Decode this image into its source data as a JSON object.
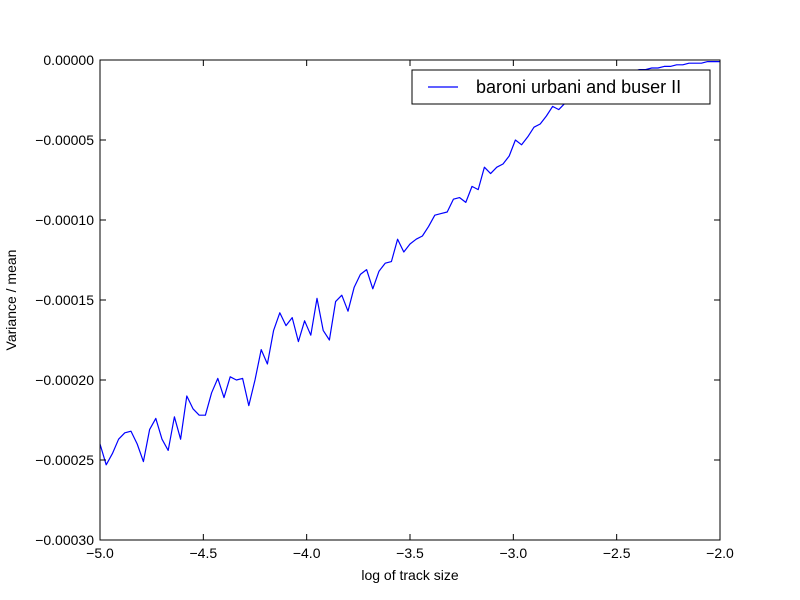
{
  "chart_data": {
    "type": "line",
    "title": "",
    "xlabel": "log of track size",
    "ylabel": "Variance / mean",
    "xlim": [
      -5.0,
      -2.0
    ],
    "ylim": [
      -0.0003,
      0.0
    ],
    "xticks": [
      -5.0,
      -4.5,
      -4.0,
      -3.5,
      -3.0,
      -2.5,
      -2.0
    ],
    "xtick_labels": [
      "−5.0",
      "−4.5",
      "−4.0",
      "−3.5",
      "−3.0",
      "−2.5",
      "−2.0"
    ],
    "yticks": [
      -0.0003,
      -0.00025,
      -0.0002,
      -0.00015,
      -0.0001,
      -5e-05,
      0.0
    ],
    "ytick_labels": [
      "−0.00030",
      "−0.00025",
      "−0.00020",
      "−0.00015",
      "−0.00010",
      "−0.00005",
      "0.00000"
    ],
    "grid": false,
    "legend_position": "top-right",
    "series": [
      {
        "name": "baroni urbani and buser II",
        "color": "#0000ff",
        "x": [
          -5.0,
          -4.97,
          -4.94,
          -4.91,
          -4.88,
          -4.85,
          -4.82,
          -4.79,
          -4.76,
          -4.73,
          -4.7,
          -4.67,
          -4.64,
          -4.61,
          -4.58,
          -4.55,
          -4.52,
          -4.49,
          -4.46,
          -4.43,
          -4.4,
          -4.37,
          -4.34,
          -4.31,
          -4.28,
          -4.25,
          -4.22,
          -4.19,
          -4.16,
          -4.13,
          -4.1,
          -4.07,
          -4.04,
          -4.01,
          -3.98,
          -3.95,
          -3.92,
          -3.89,
          -3.86,
          -3.83,
          -3.8,
          -3.77,
          -3.74,
          -3.71,
          -3.68,
          -3.65,
          -3.62,
          -3.59,
          -3.56,
          -3.53,
          -3.5,
          -3.47,
          -3.44,
          -3.41,
          -3.38,
          -3.35,
          -3.32,
          -3.29,
          -3.26,
          -3.23,
          -3.2,
          -3.17,
          -3.14,
          -3.11,
          -3.08,
          -3.05,
          -3.02,
          -2.99,
          -2.96,
          -2.93,
          -2.9,
          -2.87,
          -2.84,
          -2.81,
          -2.78,
          -2.75,
          -2.72,
          -2.69,
          -2.66,
          -2.63,
          -2.6,
          -2.57,
          -2.54,
          -2.51,
          -2.48,
          -2.45,
          -2.42,
          -2.39,
          -2.36,
          -2.33,
          -2.3,
          -2.27,
          -2.24,
          -2.21,
          -2.18,
          -2.15,
          -2.12,
          -2.09,
          -2.06,
          -2.03,
          -2.0
        ],
        "y": [
          -0.00024,
          -0.000253,
          -0.000246,
          -0.000237,
          -0.000233,
          -0.000232,
          -0.00024,
          -0.000251,
          -0.000231,
          -0.000224,
          -0.000237,
          -0.000244,
          -0.000223,
          -0.000237,
          -0.00021,
          -0.000218,
          -0.000222,
          -0.000222,
          -0.000208,
          -0.000199,
          -0.000211,
          -0.000198,
          -0.0002,
          -0.000199,
          -0.000216,
          -0.0002,
          -0.000181,
          -0.00019,
          -0.000169,
          -0.000158,
          -0.000166,
          -0.000161,
          -0.000176,
          -0.000163,
          -0.000172,
          -0.000149,
          -0.000169,
          -0.000175,
          -0.000151,
          -0.000147,
          -0.000157,
          -0.000142,
          -0.000134,
          -0.000131,
          -0.000143,
          -0.000132,
          -0.000127,
          -0.000126,
          -0.000112,
          -0.00012,
          -0.000115,
          -0.000112,
          -0.00011,
          -0.000104,
          -9.7e-05,
          -9.6e-05,
          -9.5e-05,
          -8.7e-05,
          -8.6e-05,
          -8.9e-05,
          -7.9e-05,
          -8.1e-05,
          -6.7e-05,
          -7.1e-05,
          -6.7e-05,
          -6.5e-05,
          -6e-05,
          -5e-05,
          -5.3e-05,
          -4.8e-05,
          -4.2e-05,
          -4e-05,
          -3.5e-05,
          -2.9e-05,
          -3.1e-05,
          -2.7e-05,
          -2.5e-05,
          -2.2e-05,
          -2e-05,
          -1.8e-05,
          -1.6e-05,
          -1.4e-05,
          -1.2e-05,
          -1e-05,
          -9e-06,
          -8e-06,
          -7e-06,
          -6e-06,
          -6e-06,
          -5e-06,
          -5e-06,
          -4e-06,
          -4e-06,
          -3e-06,
          -3e-06,
          -2e-06,
          -2e-06,
          -2e-06,
          -1e-06,
          -1e-06,
          -1e-06
        ]
      }
    ]
  }
}
